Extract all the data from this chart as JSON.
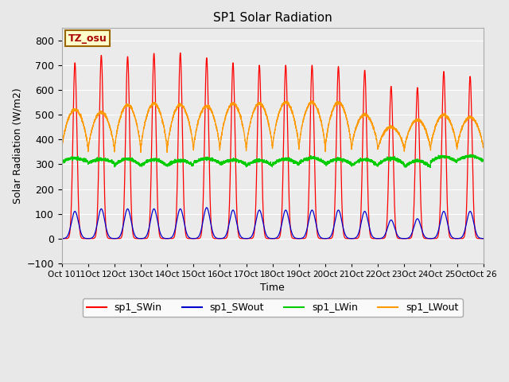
{
  "title": "SP1 Solar Radiation",
  "xlabel": "Time",
  "ylabel": "Solar Radiation (W/m2)",
  "ylim": [
    -100,
    850
  ],
  "yticks": [
    -100,
    0,
    100,
    200,
    300,
    400,
    500,
    600,
    700,
    800
  ],
  "colors": {
    "SWin": "#FF0000",
    "SWout": "#0000CC",
    "LWin": "#00CC00",
    "LWout": "#FF9900"
  },
  "legend_labels": [
    "sp1_SWin",
    "sp1_SWout",
    "sp1_LWin",
    "sp1_LWout"
  ],
  "tz_label": "TZ_osu",
  "n_days": 16,
  "start_day": 10,
  "sw_peaks": [
    710,
    740,
    735,
    748,
    750,
    730,
    710,
    700,
    700,
    700,
    695,
    680,
    615,
    610,
    675,
    655
  ],
  "swout_peaks": [
    110,
    120,
    120,
    120,
    120,
    125,
    115,
    115,
    115,
    115,
    115,
    110,
    75,
    80,
    110,
    110
  ],
  "lwin_day_peak": [
    335,
    330,
    340,
    335,
    330,
    335,
    330,
    330,
    335,
    340,
    335,
    335,
    340,
    330,
    345,
    345
  ],
  "lwin_night": [
    310,
    305,
    295,
    295,
    295,
    305,
    300,
    295,
    300,
    305,
    300,
    295,
    300,
    290,
    310,
    315
  ],
  "lwout_night": [
    355,
    350,
    350,
    350,
    350,
    355,
    355,
    355,
    360,
    360,
    358,
    360,
    358,
    355,
    360,
    360
  ],
  "lwout_day_peak": [
    520,
    510,
    540,
    545,
    540,
    535,
    545,
    545,
    550,
    550,
    550,
    500,
    450,
    480,
    500,
    490
  ]
}
